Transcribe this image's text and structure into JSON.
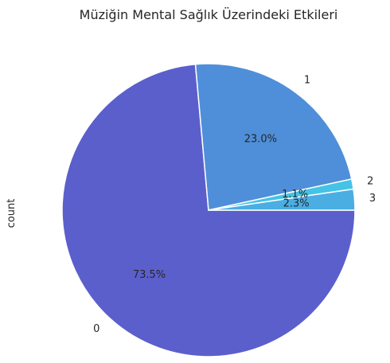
{
  "chart_data": {
    "type": "pie",
    "title": "Müziğin Mental Sağlık Üzerindeki Etkileri",
    "ylabel": "count",
    "categories": [
      "0",
      "1",
      "2",
      "3"
    ],
    "values": [
      73.5,
      23.0,
      1.1,
      2.3
    ],
    "pct_labels": [
      "73.5%",
      "23.0%",
      "1.1%",
      "2.3%"
    ],
    "colors": [
      "#5b5fcc",
      "#4f8fd9",
      "#45c3e6",
      "#4aaee3"
    ],
    "start_angle_deg": 0,
    "direction": "clockwise",
    "legend": "none"
  }
}
